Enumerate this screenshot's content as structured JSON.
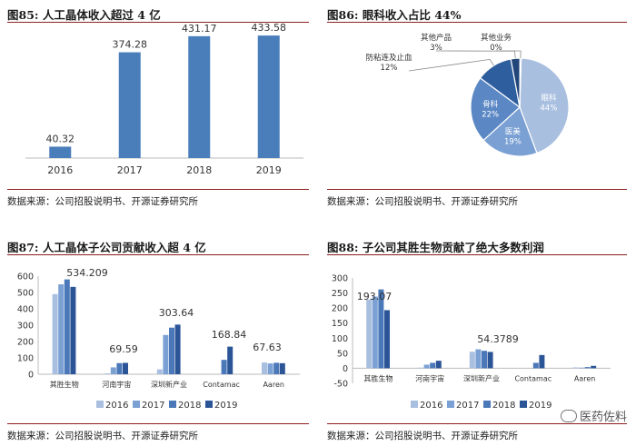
{
  "panels": [
    {
      "id": "p85",
      "title": "图85:  人工晶体收入超过 4 亿",
      "source": "数据来源：公司招股说明书、开源证券研究所"
    },
    {
      "id": "p86",
      "title": "图86:  眼科收入占比 44%",
      "source": "数据来源：公司招股说明书、开源证券研究所"
    },
    {
      "id": "p87",
      "title": "图87:  人工晶体子公司贡献收入超 4 亿",
      "source": "数据来源：公司招股说明书、开源证券研究所"
    },
    {
      "id": "p88",
      "title": "图88:  子公司其胜生物贡献了绝大多数利润",
      "source": "数据来源：公司招股说明书、开源证券研究所"
    }
  ],
  "watermark": "医药佐料",
  "colors": {
    "bar_blue": "#4a7ebb",
    "s2016": "#a9bfe0",
    "s2017": "#7aa0d4",
    "s2018": "#4a78b8",
    "s2019": "#2c5597",
    "pie_eye": "#a9bfe0",
    "pie_med": "#7aa0d4",
    "pie_bone": "#5b88c4",
    "pie_anti": "#2e5e9e",
    "pie_other": "#23467a",
    "title_rule": "#8c1e1e"
  },
  "chart_data": [
    {
      "type": "bar",
      "categories": [
        "2016",
        "2017",
        "2018",
        "2019"
      ],
      "values": [
        40.32,
        374.28,
        431.17,
        433.58
      ],
      "data_labels": [
        "40.32",
        "374.28",
        "431.17",
        "433.58"
      ],
      "ylim": [
        0,
        450
      ],
      "grid": false
    },
    {
      "type": "pie",
      "slices": [
        {
          "name": "眼科",
          "value": 44,
          "label": "44%"
        },
        {
          "name": "医美",
          "value": 19,
          "label": "19%"
        },
        {
          "name": "骨科",
          "value": 22,
          "label": "22%"
        },
        {
          "name": "防粘连及止血",
          "value": 12,
          "label": "12%"
        },
        {
          "name": "其他产品",
          "value": 3,
          "label": "3%"
        },
        {
          "name": "其他业务",
          "value": 0.4,
          "label": "0%"
        }
      ]
    },
    {
      "type": "bar",
      "categories": [
        "其胜生物",
        "河南宇宙",
        "深圳新产业",
        "Contamac",
        "Aaren"
      ],
      "series": [
        {
          "name": "2016",
          "values": [
            490,
            5,
            30,
            0,
            72
          ]
        },
        {
          "name": "2017",
          "values": [
            550,
            42,
            240,
            0,
            66
          ]
        },
        {
          "name": "2018",
          "values": [
            580,
            68,
            285,
            88,
            70
          ]
        },
        {
          "name": "2019",
          "values": [
            534.209,
            69.59,
            303.64,
            168.84,
            67.63
          ]
        }
      ],
      "data_labels": [
        "534.209",
        "69.59",
        "303.64",
        "168.84",
        "67.63"
      ],
      "yticks": [
        "0",
        "100",
        "200",
        "300",
        "400",
        "500",
        "600"
      ],
      "ylim": [
        0,
        600
      ],
      "legend": "bottom"
    },
    {
      "type": "bar",
      "categories": [
        "其胜生物",
        "河南宇宙",
        "深圳新产业",
        "Contamac",
        "Aaren"
      ],
      "series": [
        {
          "name": "2016",
          "values": [
            228,
            2,
            55,
            0,
            3
          ]
        },
        {
          "name": "2017",
          "values": [
            238,
            12,
            63,
            0,
            2
          ]
        },
        {
          "name": "2018",
          "values": [
            262,
            18,
            58,
            18,
            4
          ]
        },
        {
          "name": "2019",
          "values": [
            193.07,
            25,
            54.3789,
            44,
            8
          ]
        }
      ],
      "data_labels": [
        "193.07",
        "54.3789"
      ],
      "yticks": [
        "-50",
        "0",
        "50",
        "100",
        "150",
        "200",
        "250",
        "300"
      ],
      "ylim": [
        -50,
        300
      ],
      "legend": "bottom"
    }
  ]
}
